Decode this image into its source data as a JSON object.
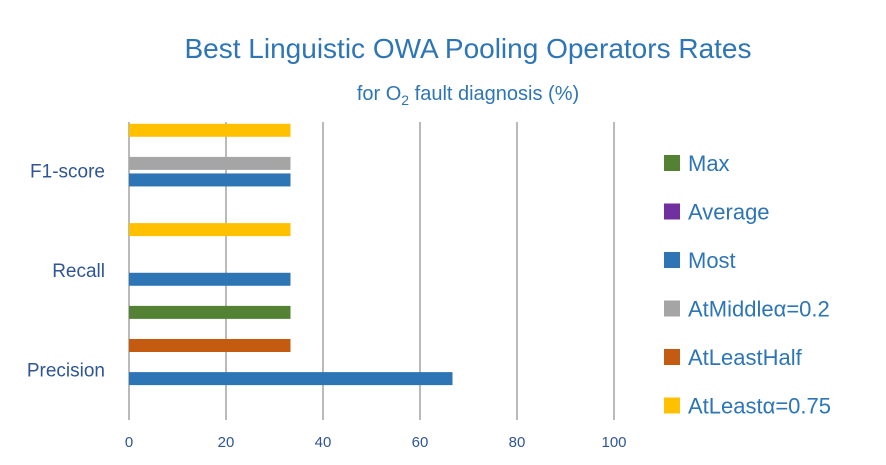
{
  "chart_data": {
    "type": "bar",
    "orientation": "horizontal",
    "title": "Best Linguistic OWA Pooling Operators Rates",
    "subtitle_prefix": "for O",
    "subtitle_subscript": "2",
    "subtitle_suffix": " fault diagnosis  (%)",
    "categories": [
      "Precision",
      "Recall",
      "F1-score"
    ],
    "xlim": [
      0,
      100
    ],
    "xticks": [
      0,
      20,
      40,
      60,
      80,
      100
    ],
    "grid": true,
    "legend_position": "right",
    "series": [
      {
        "name": "Max",
        "color": "#548235",
        "values": [
          null,
          33.3,
          null
        ]
      },
      {
        "name": "Average",
        "color": "#7030A0",
        "values": [
          null,
          null,
          null
        ]
      },
      {
        "name": "Most",
        "color": "#2E75B6",
        "values": [
          66.7,
          33.3,
          33.3
        ]
      },
      {
        "name": "AtMiddleα=0.2",
        "color": "#A5A5A5",
        "values": [
          null,
          null,
          33.3
        ]
      },
      {
        "name": "AtLeastHalf",
        "color": "#C55A11",
        "values": [
          33.3,
          null,
          null
        ]
      },
      {
        "name": "AtLeastα=0.75",
        "color": "#FFC000",
        "values": [
          null,
          33.3,
          33.3
        ]
      }
    ]
  }
}
